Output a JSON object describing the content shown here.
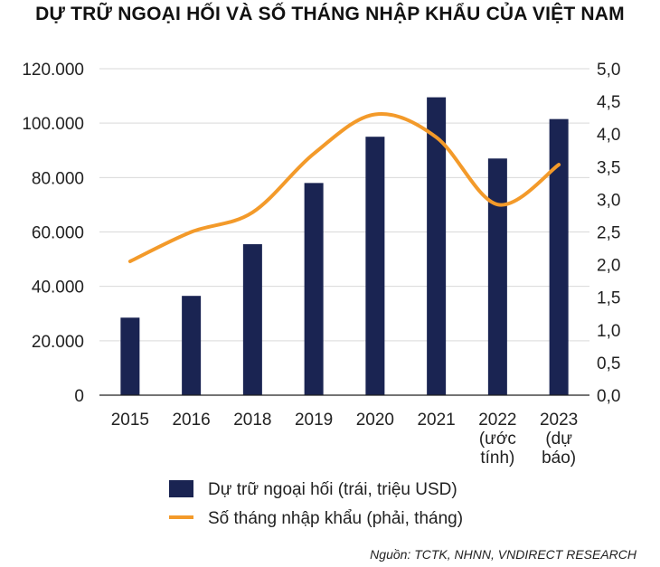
{
  "title": "DỰ TRỮ NGOẠI HỐI VÀ SỐ THÁNG NHẬP KHẨU CỦA VIỆT NAM",
  "source": "Nguồn: TCTK, NHNN, VNDIRECT RESEARCH",
  "colors": {
    "bar": "#1a2452",
    "line": "#f39a2a",
    "axis": "#222222",
    "grid": "#d9d9d9"
  },
  "chart_data": {
    "type": "bar",
    "categories": [
      [
        "2015"
      ],
      [
        "2016"
      ],
      [
        "2018"
      ],
      [
        "2019"
      ],
      [
        "2020"
      ],
      [
        "2021"
      ],
      [
        "2022",
        "(ước",
        "tính)"
      ],
      [
        "2023",
        "(dự",
        "báo)"
      ]
    ],
    "series": [
      {
        "name": "Dự trữ ngoại hối (trái, triệu USD)",
        "type": "bar",
        "axis": "left",
        "values": [
          28500,
          36500,
          55500,
          78000,
          95000,
          109500,
          87000,
          101500
        ]
      },
      {
        "name": "Số tháng nhập khẩu (phải, tháng)",
        "type": "line",
        "axis": "right",
        "smooth": true,
        "values": [
          2.05,
          2.5,
          2.8,
          3.7,
          4.3,
          3.95,
          2.92,
          3.53
        ]
      }
    ],
    "y_left": {
      "ylim": [
        0,
        120000
      ],
      "ticks": [
        0,
        20000,
        40000,
        60000,
        80000,
        100000,
        120000
      ],
      "tick_labels": [
        "0",
        "20.000",
        "40.000",
        "60.000",
        "80.000",
        "100.000",
        "120.000"
      ]
    },
    "y_right": {
      "ylim": [
        0,
        5
      ],
      "ticks": [
        0,
        0.5,
        1,
        1.5,
        2,
        2.5,
        3,
        3.5,
        4,
        4.5,
        5
      ],
      "tick_labels": [
        "0,0",
        "0,5",
        "1,0",
        "1,5",
        "2,0",
        "2,5",
        "3,0",
        "3,5",
        "4,0",
        "4,5",
        "5,0"
      ]
    },
    "grid": true,
    "legend_position": "bottom"
  }
}
